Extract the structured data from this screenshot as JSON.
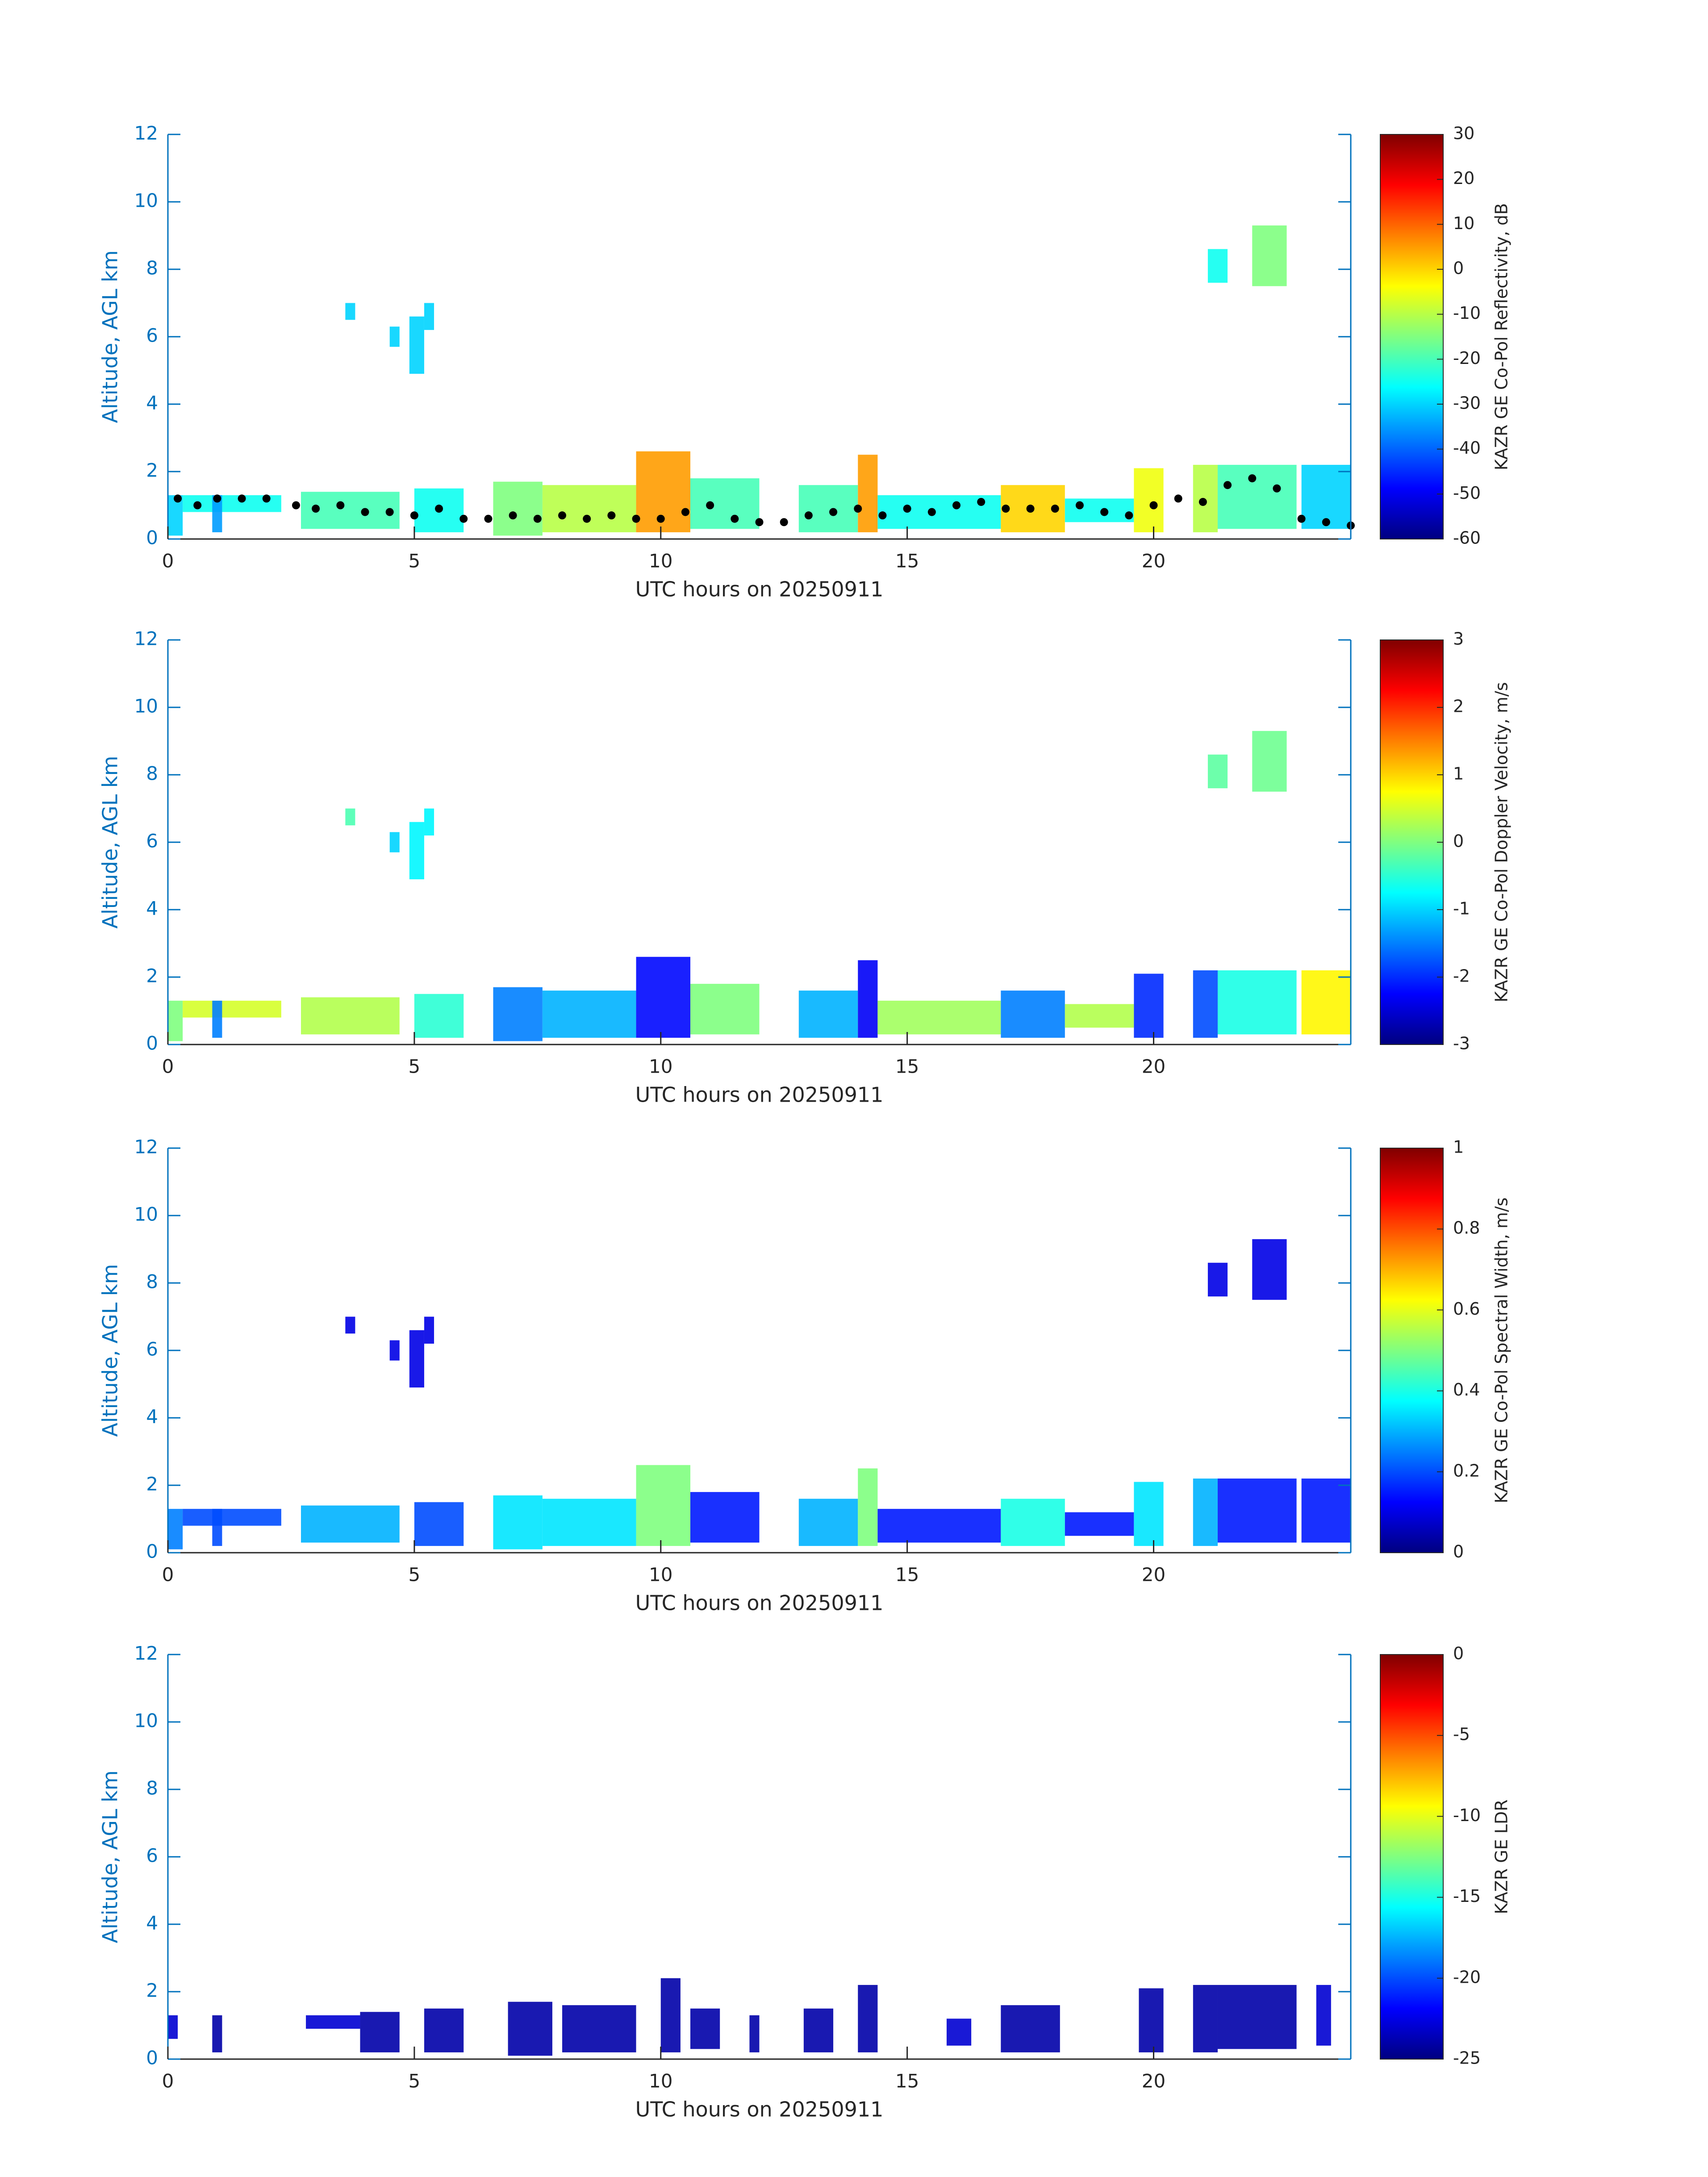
{
  "chart_data": [
    {
      "type": "time-height",
      "colormap": "jet",
      "xlabel": "UTC hours on 20250911",
      "ylabel": "Altitude, AGL km",
      "xlim": [
        0,
        24
      ],
      "xticks": [
        0,
        5,
        10,
        15,
        20
      ],
      "ylim": [
        0,
        12
      ],
      "yticks": [
        0,
        2,
        4,
        6,
        8,
        10,
        12
      ],
      "colorbar": {
        "label": "KAZR GE Co-Pol Reflectivity, dB",
        "lim": [
          -60,
          30
        ],
        "ticks": [
          -60,
          -50,
          -40,
          -30,
          -20,
          -10,
          0,
          10,
          20,
          30
        ]
      },
      "patches": [
        {
          "start": 0,
          "end": 0.3,
          "bottom": 0.1,
          "top": 1.3,
          "value": -30
        },
        {
          "start": 0.3,
          "end": 2.3,
          "bottom": 0.8,
          "top": 1.3,
          "value": -25
        },
        {
          "start": 0.9,
          "end": 1.1,
          "bottom": 0.2,
          "top": 1.3,
          "value": -35
        },
        {
          "start": 2.7,
          "end": 4.7,
          "bottom": 0.3,
          "top": 1.4,
          "value": -20
        },
        {
          "start": 3.6,
          "end": 3.8,
          "bottom": 6.5,
          "top": 7.0,
          "value": -30
        },
        {
          "start": 4.5,
          "end": 4.7,
          "bottom": 5.7,
          "top": 6.3,
          "value": -30
        },
        {
          "start": 4.9,
          "end": 5.2,
          "bottom": 4.9,
          "top": 6.6,
          "value": -30
        },
        {
          "start": 5.2,
          "end": 5.4,
          "bottom": 6.2,
          "top": 7.0,
          "value": -30
        },
        {
          "start": 5.0,
          "end": 6.0,
          "bottom": 0.2,
          "top": 1.5,
          "value": -25
        },
        {
          "start": 6.6,
          "end": 7.6,
          "bottom": 0.1,
          "top": 1.7,
          "value": -15
        },
        {
          "start": 7.6,
          "end": 9.5,
          "bottom": 0.2,
          "top": 1.6,
          "value": -10
        },
        {
          "start": 9.5,
          "end": 10.6,
          "bottom": 0.2,
          "top": 2.6,
          "value": 5
        },
        {
          "start": 10.6,
          "end": 12.0,
          "bottom": 0.3,
          "top": 1.8,
          "value": -20
        },
        {
          "start": 12.8,
          "end": 14.0,
          "bottom": 0.2,
          "top": 1.6,
          "value": -20
        },
        {
          "start": 14.0,
          "end": 14.4,
          "bottom": 0.2,
          "top": 2.5,
          "value": 5
        },
        {
          "start": 14.4,
          "end": 16.9,
          "bottom": 0.3,
          "top": 1.3,
          "value": -25
        },
        {
          "start": 16.9,
          "end": 18.2,
          "bottom": 0.2,
          "top": 1.6,
          "value": 0
        },
        {
          "start": 18.2,
          "end": 19.6,
          "bottom": 0.5,
          "top": 1.2,
          "value": -25
        },
        {
          "start": 19.6,
          "end": 20.2,
          "bottom": 0.2,
          "top": 2.1,
          "value": -5
        },
        {
          "start": 20.8,
          "end": 21.3,
          "bottom": 0.2,
          "top": 2.2,
          "value": -10
        },
        {
          "start": 21.3,
          "end": 22.9,
          "bottom": 0.3,
          "top": 2.2,
          "value": -20
        },
        {
          "start": 21.1,
          "end": 21.5,
          "bottom": 7.6,
          "top": 8.6,
          "value": -25
        },
        {
          "start": 22.0,
          "end": 22.7,
          "bottom": 7.5,
          "top": 9.3,
          "value": -15
        },
        {
          "start": 23.0,
          "end": 24.0,
          "bottom": 0.3,
          "top": 2.2,
          "value": -30
        }
      ],
      "points": {
        "color": "#000000",
        "x": [
          0.2,
          0.6,
          1.0,
          1.5,
          2.0,
          2.6,
          3.0,
          3.5,
          4.0,
          4.5,
          5.0,
          5.5,
          6.0,
          6.5,
          7.0,
          7.5,
          8.0,
          8.5,
          9.0,
          9.5,
          10.0,
          10.5,
          11.0,
          11.5,
          12.0,
          12.5,
          13.0,
          13.5,
          14.0,
          14.5,
          15.0,
          15.5,
          16.0,
          16.5,
          17.0,
          17.5,
          18.0,
          18.5,
          19.0,
          19.5,
          20.0,
          20.5,
          21.0,
          21.5,
          22.0,
          22.5,
          23.0,
          23.5,
          24.0
        ],
        "y": [
          1.2,
          1.0,
          1.2,
          1.2,
          1.2,
          1.0,
          0.9,
          1.0,
          0.8,
          0.8,
          0.7,
          0.9,
          0.6,
          0.6,
          0.7,
          0.6,
          0.7,
          0.6,
          0.7,
          0.6,
          0.6,
          0.8,
          1.0,
          0.6,
          0.5,
          0.5,
          0.7,
          0.8,
          0.9,
          0.7,
          0.9,
          0.8,
          1.0,
          1.1,
          0.9,
          0.9,
          0.9,
          1.0,
          0.8,
          0.7,
          1.0,
          1.2,
          1.1,
          1.6,
          1.8,
          1.5,
          0.6,
          0.5,
          0.4
        ]
      }
    },
    {
      "type": "time-height",
      "colormap": "jet",
      "xlabel": "UTC hours on 20250911",
      "ylabel": "Altitude, AGL km",
      "xlim": [
        0,
        24
      ],
      "xticks": [
        0,
        5,
        10,
        15,
        20
      ],
      "ylim": [
        0,
        12
      ],
      "yticks": [
        0,
        2,
        4,
        6,
        8,
        10,
        12
      ],
      "colorbar": {
        "label": "KAZR GE Co-Pol Doppler Velocity, m/s",
        "lim": [
          -3,
          3
        ],
        "ticks": [
          -3,
          -2,
          -1,
          0,
          1,
          2,
          3
        ]
      },
      "patches": [
        {
          "start": 0,
          "end": 0.3,
          "bottom": 0.1,
          "top": 1.3,
          "value": 0
        },
        {
          "start": 0.3,
          "end": 2.3,
          "bottom": 0.8,
          "top": 1.3,
          "value": 0.5
        },
        {
          "start": 0.9,
          "end": 1.1,
          "bottom": 0.2,
          "top": 1.3,
          "value": -1.5
        },
        {
          "start": 2.7,
          "end": 4.7,
          "bottom": 0.3,
          "top": 1.4,
          "value": 0.3
        },
        {
          "start": 3.6,
          "end": 3.8,
          "bottom": 6.5,
          "top": 7.0,
          "value": -0.3
        },
        {
          "start": 4.5,
          "end": 4.7,
          "bottom": 5.7,
          "top": 6.3,
          "value": -1
        },
        {
          "start": 4.9,
          "end": 5.2,
          "bottom": 4.9,
          "top": 6.6,
          "value": -0.8
        },
        {
          "start": 5.2,
          "end": 5.4,
          "bottom": 6.2,
          "top": 7.0,
          "value": -0.8
        },
        {
          "start": 5.0,
          "end": 6.0,
          "bottom": 0.2,
          "top": 1.5,
          "value": -0.5
        },
        {
          "start": 6.6,
          "end": 7.6,
          "bottom": 0.1,
          "top": 1.7,
          "value": -1.5
        },
        {
          "start": 7.6,
          "end": 9.5,
          "bottom": 0.2,
          "top": 1.6,
          "value": -1.2
        },
        {
          "start": 9.5,
          "end": 10.6,
          "bottom": 0.2,
          "top": 2.6,
          "value": -2.2
        },
        {
          "start": 10.6,
          "end": 12.0,
          "bottom": 0.3,
          "top": 1.8,
          "value": 0
        },
        {
          "start": 12.8,
          "end": 14.0,
          "bottom": 0.2,
          "top": 1.6,
          "value": -1.2
        },
        {
          "start": 14.0,
          "end": 14.4,
          "bottom": 0.2,
          "top": 2.5,
          "value": -2.3
        },
        {
          "start": 14.4,
          "end": 16.9,
          "bottom": 0.3,
          "top": 1.3,
          "value": 0.2
        },
        {
          "start": 16.9,
          "end": 18.2,
          "bottom": 0.2,
          "top": 1.6,
          "value": -1.5
        },
        {
          "start": 18.2,
          "end": 19.6,
          "bottom": 0.5,
          "top": 1.2,
          "value": 0.3
        },
        {
          "start": 19.6,
          "end": 20.2,
          "bottom": 0.2,
          "top": 2.1,
          "value": -2
        },
        {
          "start": 20.8,
          "end": 21.3,
          "bottom": 0.2,
          "top": 2.2,
          "value": -1.8
        },
        {
          "start": 21.3,
          "end": 22.9,
          "bottom": 0.3,
          "top": 2.2,
          "value": -0.6
        },
        {
          "start": 21.1,
          "end": 21.5,
          "bottom": 7.6,
          "top": 8.6,
          "value": -0.2
        },
        {
          "start": 22.0,
          "end": 22.7,
          "bottom": 7.5,
          "top": 9.3,
          "value": -0.1
        },
        {
          "start": 23.0,
          "end": 24.0,
          "bottom": 0.3,
          "top": 2.2,
          "value": 0.8
        }
      ]
    },
    {
      "type": "time-height",
      "colormap": "jet",
      "xlabel": "UTC hours on 20250911",
      "ylabel": "Altitude, AGL km",
      "xlim": [
        0,
        24
      ],
      "xticks": [
        0,
        5,
        10,
        15,
        20
      ],
      "ylim": [
        0,
        12
      ],
      "yticks": [
        0,
        2,
        4,
        6,
        8,
        10,
        12
      ],
      "colorbar": {
        "label": "KAZR GE Co-Pol Spectral Width, m/s",
        "lim": [
          0,
          1
        ],
        "ticks": [
          0,
          0.2,
          0.4,
          0.6,
          0.8,
          1
        ]
      },
      "patches": [
        {
          "start": 0,
          "end": 0.3,
          "bottom": 0.1,
          "top": 1.3,
          "value": 0.25
        },
        {
          "start": 0.3,
          "end": 2.3,
          "bottom": 0.8,
          "top": 1.3,
          "value": 0.2
        },
        {
          "start": 0.9,
          "end": 1.1,
          "bottom": 0.2,
          "top": 1.3,
          "value": 0.2
        },
        {
          "start": 2.7,
          "end": 4.7,
          "bottom": 0.3,
          "top": 1.4,
          "value": 0.3
        },
        {
          "start": 3.6,
          "end": 3.8,
          "bottom": 6.5,
          "top": 7.0,
          "value": 0.1
        },
        {
          "start": 4.5,
          "end": 4.7,
          "bottom": 5.7,
          "top": 6.3,
          "value": 0.1
        },
        {
          "start": 4.9,
          "end": 5.2,
          "bottom": 4.9,
          "top": 6.6,
          "value": 0.1
        },
        {
          "start": 5.2,
          "end": 5.4,
          "bottom": 6.2,
          "top": 7.0,
          "value": 0.1
        },
        {
          "start": 5.0,
          "end": 6.0,
          "bottom": 0.2,
          "top": 1.5,
          "value": 0.2
        },
        {
          "start": 6.6,
          "end": 7.6,
          "bottom": 0.1,
          "top": 1.7,
          "value": 0.35
        },
        {
          "start": 7.6,
          "end": 9.5,
          "bottom": 0.2,
          "top": 1.6,
          "value": 0.35
        },
        {
          "start": 9.5,
          "end": 10.6,
          "bottom": 0.2,
          "top": 2.6,
          "value": 0.5
        },
        {
          "start": 10.6,
          "end": 12.0,
          "bottom": 0.3,
          "top": 1.8,
          "value": 0.15
        },
        {
          "start": 12.8,
          "end": 14.0,
          "bottom": 0.2,
          "top": 1.6,
          "value": 0.3
        },
        {
          "start": 14.0,
          "end": 14.4,
          "bottom": 0.2,
          "top": 2.5,
          "value": 0.5
        },
        {
          "start": 14.4,
          "end": 16.9,
          "bottom": 0.3,
          "top": 1.3,
          "value": 0.15
        },
        {
          "start": 16.9,
          "end": 18.2,
          "bottom": 0.2,
          "top": 1.6,
          "value": 0.4
        },
        {
          "start": 18.2,
          "end": 19.6,
          "bottom": 0.5,
          "top": 1.2,
          "value": 0.15
        },
        {
          "start": 19.6,
          "end": 20.2,
          "bottom": 0.2,
          "top": 2.1,
          "value": 0.35
        },
        {
          "start": 20.8,
          "end": 21.3,
          "bottom": 0.2,
          "top": 2.2,
          "value": 0.3
        },
        {
          "start": 21.3,
          "end": 22.9,
          "bottom": 0.3,
          "top": 2.2,
          "value": 0.15
        },
        {
          "start": 21.1,
          "end": 21.5,
          "bottom": 7.6,
          "top": 8.6,
          "value": 0.1
        },
        {
          "start": 22.0,
          "end": 22.7,
          "bottom": 7.5,
          "top": 9.3,
          "value": 0.1
        },
        {
          "start": 23.0,
          "end": 24.0,
          "bottom": 0.3,
          "top": 2.2,
          "value": 0.15
        }
      ]
    },
    {
      "type": "time-height",
      "colormap": "jet",
      "xlabel": "UTC hours on 20250911",
      "ylabel": "Altitude, AGL km",
      "xlim": [
        0,
        24
      ],
      "xticks": [
        0,
        5,
        10,
        15,
        20
      ],
      "ylim": [
        0,
        12
      ],
      "yticks": [
        0,
        2,
        4,
        6,
        8,
        10,
        12
      ],
      "colorbar": {
        "label": "KAZR GE LDR",
        "lim": [
          -25,
          0
        ],
        "ticks": [
          -25,
          -20,
          -15,
          -10,
          -5,
          0
        ]
      },
      "patches": [
        {
          "start": 0,
          "end": 0.2,
          "bottom": 0.6,
          "top": 1.3,
          "value": -23
        },
        {
          "start": 0.9,
          "end": 1.1,
          "bottom": 0.2,
          "top": 1.3,
          "value": -24
        },
        {
          "start": 2.8,
          "end": 3.9,
          "bottom": 0.9,
          "top": 1.3,
          "value": -23
        },
        {
          "start": 3.9,
          "end": 4.7,
          "bottom": 0.2,
          "top": 1.4,
          "value": -24
        },
        {
          "start": 5.2,
          "end": 6.0,
          "bottom": 0.2,
          "top": 1.5,
          "value": -24
        },
        {
          "start": 6.9,
          "end": 7.8,
          "bottom": 0.1,
          "top": 1.7,
          "value": -24
        },
        {
          "start": 8.0,
          "end": 9.5,
          "bottom": 0.2,
          "top": 1.6,
          "value": -24
        },
        {
          "start": 10.0,
          "end": 10.4,
          "bottom": 0.2,
          "top": 2.4,
          "value": -24
        },
        {
          "start": 10.6,
          "end": 11.2,
          "bottom": 0.3,
          "top": 1.5,
          "value": -24
        },
        {
          "start": 11.8,
          "end": 12.0,
          "bottom": 0.2,
          "top": 1.3,
          "value": -24
        },
        {
          "start": 12.9,
          "end": 13.5,
          "bottom": 0.2,
          "top": 1.5,
          "value": -24
        },
        {
          "start": 14.0,
          "end": 14.4,
          "bottom": 0.2,
          "top": 2.2,
          "value": -24
        },
        {
          "start": 15.8,
          "end": 16.3,
          "bottom": 0.4,
          "top": 1.2,
          "value": -23
        },
        {
          "start": 16.9,
          "end": 18.1,
          "bottom": 0.2,
          "top": 1.6,
          "value": -24
        },
        {
          "start": 19.7,
          "end": 20.2,
          "bottom": 0.2,
          "top": 2.1,
          "value": -24
        },
        {
          "start": 20.8,
          "end": 21.3,
          "bottom": 0.2,
          "top": 2.2,
          "value": -24
        },
        {
          "start": 21.3,
          "end": 22.9,
          "bottom": 0.3,
          "top": 2.2,
          "value": -24
        },
        {
          "start": 23.3,
          "end": 23.6,
          "bottom": 0.4,
          "top": 2.2,
          "value": -23
        }
      ]
    }
  ]
}
